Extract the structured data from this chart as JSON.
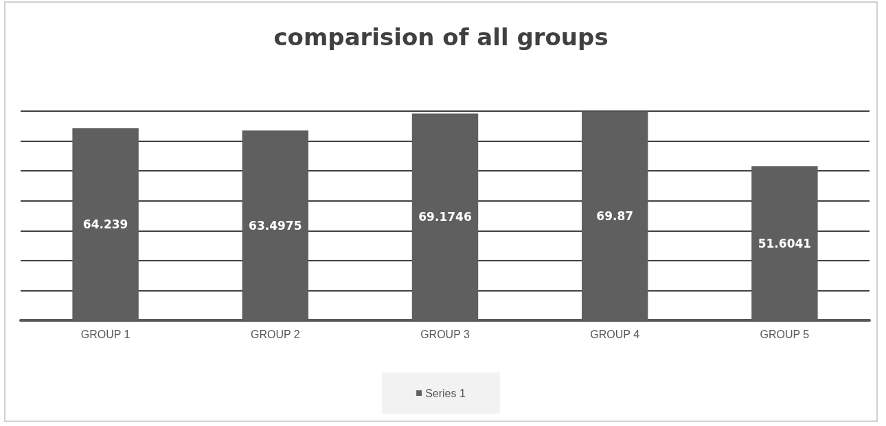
{
  "chart_data": {
    "type": "bar",
    "title": "comparision of all groups",
    "categories": [
      "GROUP 1",
      "GROUP 2",
      "GROUP 3",
      "GROUP 4",
      "GROUP 5"
    ],
    "series": [
      {
        "name": "Series 1",
        "color": "#5f5f5f",
        "values": [
          64.239,
          63.4975,
          69.1746,
          69.87,
          51.6041
        ]
      }
    ],
    "ylim": [
      0,
      70
    ],
    "yticks": [
      {
        "value": 0,
        "label": null
      },
      {
        "value": 10,
        "label": null
      },
      {
        "value": 20,
        "label": null
      },
      {
        "value": 30,
        "label": null
      },
      {
        "value": 40,
        "label": null
      },
      {
        "value": 50,
        "label": null
      },
      {
        "value": 60,
        "label": null
      },
      {
        "value": 70,
        "label": null
      }
    ],
    "tick_labels": "x",
    "grid": "y",
    "legend": "bottom",
    "data_labels": true
  }
}
